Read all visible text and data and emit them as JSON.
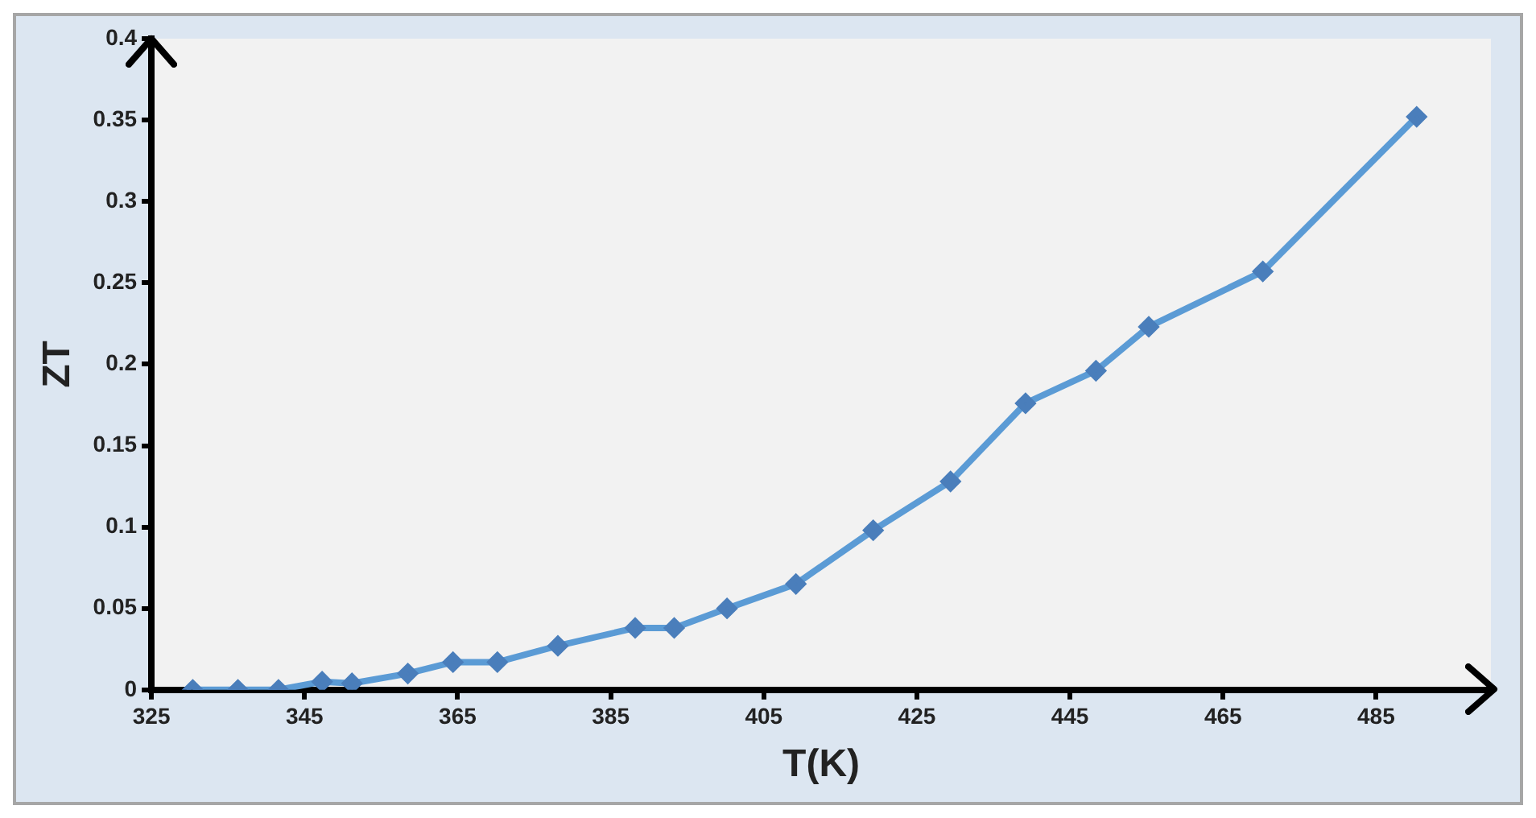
{
  "chart_data": {
    "type": "line",
    "xlabel": "T(K)",
    "ylabel": "ZT",
    "x": [
      330.4,
      336.3,
      341.6,
      347.3,
      351.2,
      358.5,
      364.4,
      370.2,
      378.1,
      388.2,
      393.3,
      400.2,
      409.2,
      419.3,
      429.4,
      439.2,
      448.4,
      455.3,
      470.2,
      490.3
    ],
    "series": [
      {
        "color": "#5b9bd5",
        "values": [
          0,
          0,
          0,
          0.005,
          0.004,
          0.01,
          0.017,
          0.017,
          0.027,
          0.038,
          0.038,
          0.05,
          0.065,
          0.098,
          0.128,
          0.176,
          0.196,
          0.223,
          0.257,
          0.352
        ]
      }
    ],
    "xlim": [
      325,
      500
    ],
    "xticks": [
      325,
      345,
      365,
      385,
      405,
      425,
      445,
      465,
      485
    ],
    "ylim": [
      0,
      0.4
    ],
    "yticks": [
      0,
      0.05,
      0.1,
      0.15,
      0.2,
      0.25,
      0.3,
      0.35,
      0.4
    ],
    "grid": false,
    "legend": false,
    "marker": "diamond",
    "line_style": "solid"
  }
}
